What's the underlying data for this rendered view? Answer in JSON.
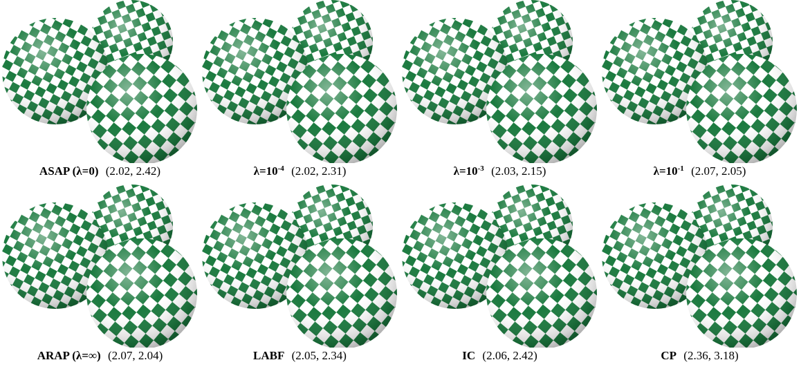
{
  "colors": {
    "checker_dark": "#1b7a3f",
    "checker_light": "#ffffff"
  },
  "panels": [
    {
      "method": "ASAP (λ=0)",
      "values": "(2.02, 2.42)"
    },
    {
      "method": "λ=10",
      "exponent": "-4",
      "values": "(2.02, 2.31)"
    },
    {
      "method": "λ=10",
      "exponent": "-3",
      "values": "(2.03, 2.15)"
    },
    {
      "method": "λ=10",
      "exponent": "-1",
      "values": "(2.07, 2.05)"
    },
    {
      "method": "ARAP (λ=∞)",
      "values": "(2.07, 2.04)"
    },
    {
      "method": "LABF",
      "values": "(2.05, 2.34)"
    },
    {
      "method": "IC",
      "values": "(2.06, 2.42)"
    },
    {
      "method": "CP",
      "values": "(2.36, 3.18)"
    }
  ]
}
